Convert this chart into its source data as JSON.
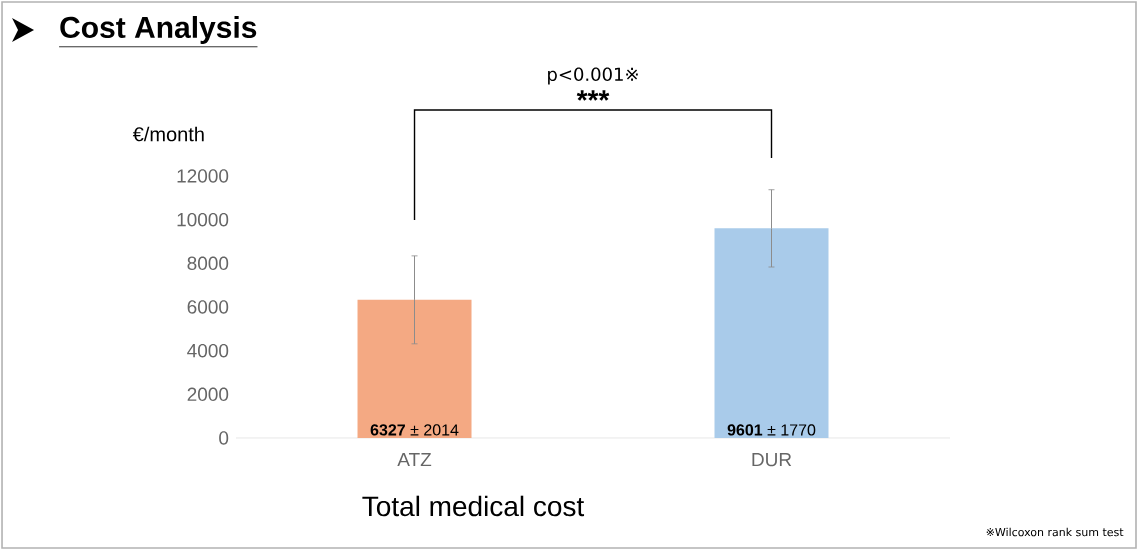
{
  "chart_data": {
    "type": "bar",
    "title": "Cost Analysis",
    "ylabel": "€/month",
    "xlabel": "Total medical cost",
    "categories": [
      "ATZ",
      "DUR"
    ],
    "values": [
      6327,
      9601
    ],
    "colors": [
      "#f4a983",
      "#a9cbea"
    ],
    "errors": [
      2014,
      1770
    ],
    "value_labels": [
      "**6327** ± 2014",
      "**9601** ± 1770"
    ],
    "ylim": [
      0,
      12000
    ],
    "yticks": [
      0,
      2000,
      4000,
      6000,
      8000,
      10000,
      12000
    ],
    "annotations": [
      "p<0.001※",
      "***",
      "※Wilcoxon rank sum test"
    ],
    "grid": false
  }
}
